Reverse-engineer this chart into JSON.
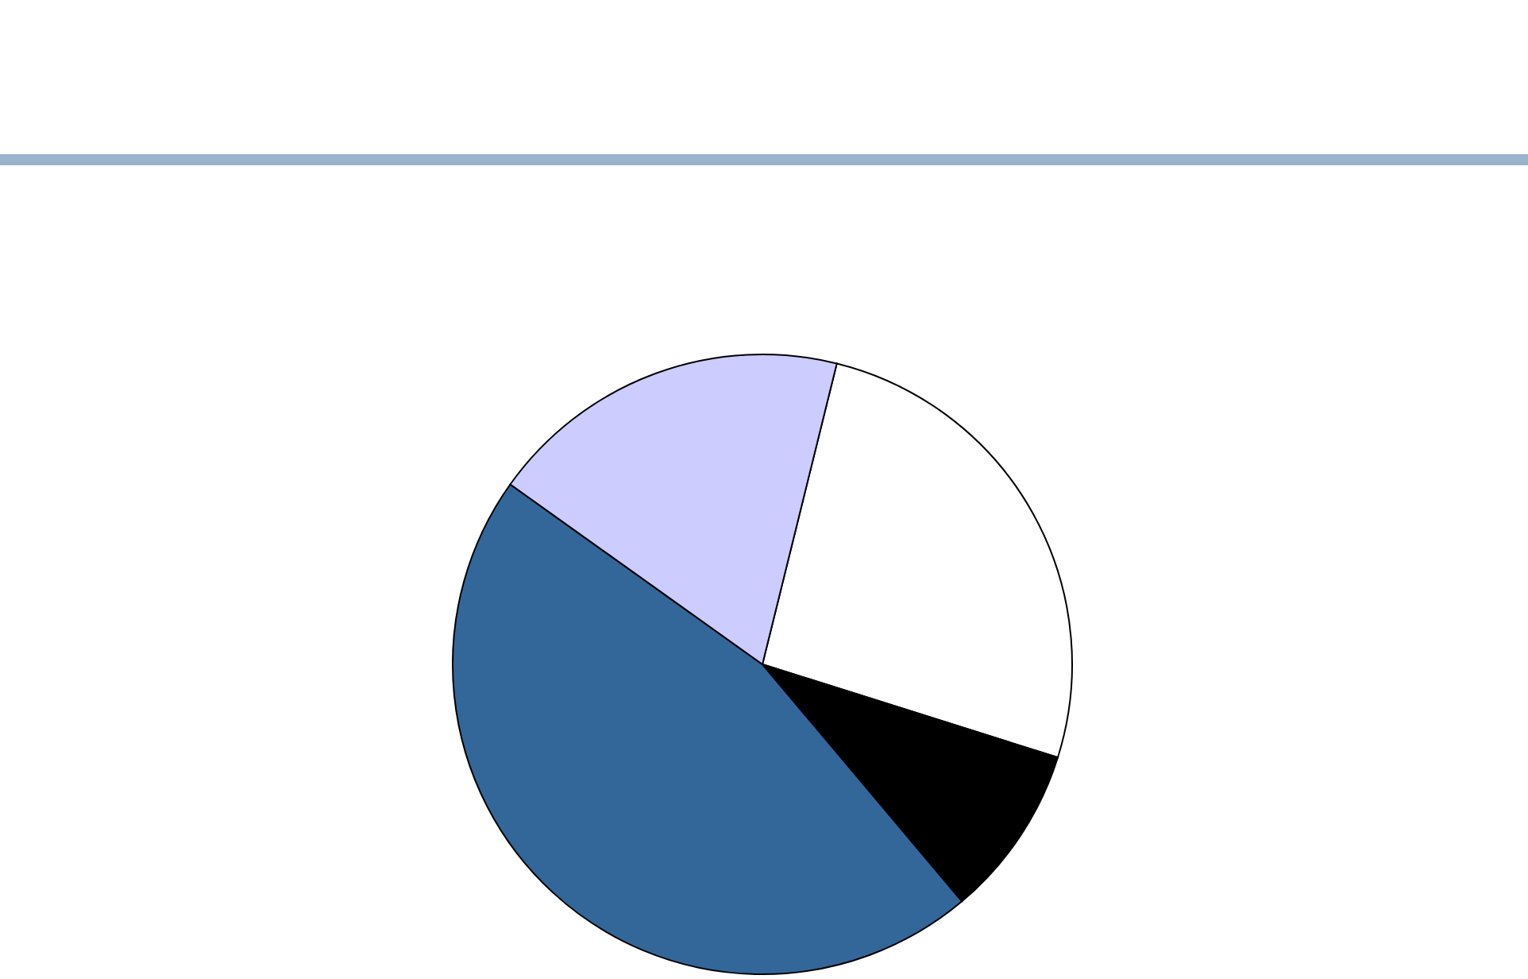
{
  "chart_data": {
    "type": "pie",
    "categories": [
      null,
      null,
      null,
      null
    ],
    "values": [
      26,
      9,
      46,
      19
    ],
    "colors": [
      "#ffffff",
      "#000000",
      "#336699",
      "#ccccff"
    ]
  }
}
